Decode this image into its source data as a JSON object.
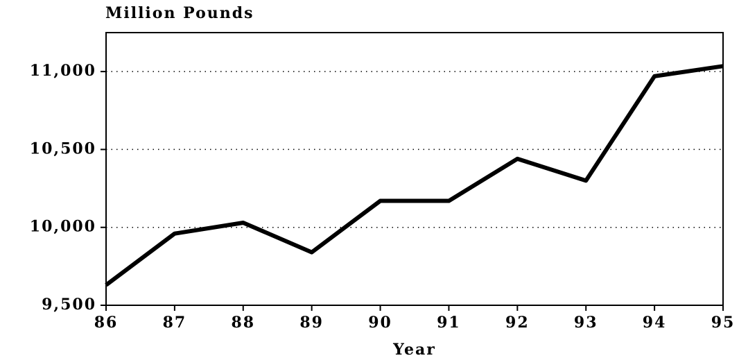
{
  "chart_data": {
    "type": "line",
    "title": "Million Pounds",
    "x_label": "Year",
    "x": [
      86,
      87,
      88,
      89,
      90,
      91,
      92,
      93,
      94,
      95
    ],
    "series": [
      {
        "name": "Million Pounds",
        "color": "#000000",
        "values": [
          9630,
          9960,
          10030,
          9840,
          10170,
          10170,
          10440,
          10300,
          10970,
          11035
        ]
      }
    ],
    "xlim": [
      86,
      95
    ],
    "xticks": [
      86,
      87,
      88,
      89,
      90,
      91,
      92,
      93,
      94,
      95
    ],
    "ylim": [
      9500,
      11250
    ],
    "yticks": [
      {
        "value": 9500,
        "label": "9,500"
      },
      {
        "value": 10000,
        "label": "10,000"
      },
      {
        "value": 10500,
        "label": "10,500"
      },
      {
        "value": 11000,
        "label": "11,000"
      }
    ],
    "grid": true
  }
}
